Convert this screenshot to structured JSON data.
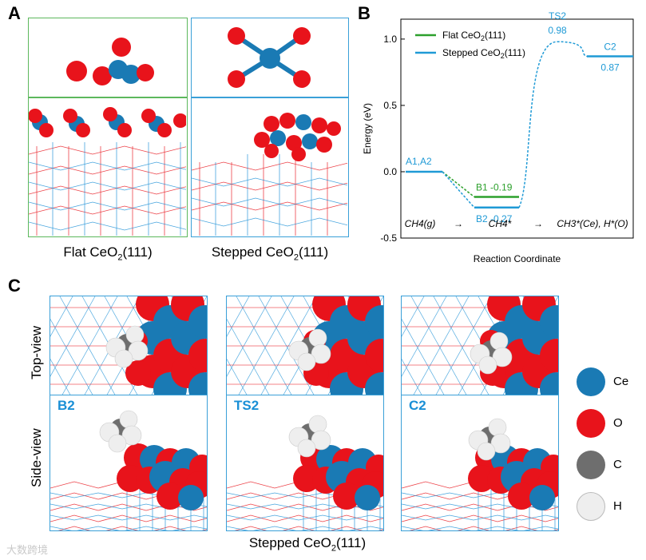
{
  "panels": {
    "a": "A",
    "b": "B",
    "c": "C"
  },
  "panel_a": {
    "flat_caption_main": "Flat CeO",
    "flat_caption_sub": "2",
    "flat_caption_tail": "(111)",
    "stepped_caption_main": "Stepped CeO",
    "stepped_caption_sub": "2",
    "stepped_caption_tail": "(111)",
    "flat_color": "#5cb85c",
    "stepped_color": "#3aa0d8"
  },
  "panel_c": {
    "top_view_label": "Top-view",
    "side_view_label": "Side-view",
    "states": [
      "B2",
      "TS2",
      "C2"
    ],
    "caption_main": "Stepped CeO",
    "caption_sub": "2",
    "caption_tail": "(111)",
    "legend": [
      {
        "label": "Ce",
        "color": "#1a7ab4"
      },
      {
        "label": "O",
        "color": "#e8131b"
      },
      {
        "label": "C",
        "color": "#6e6e6e"
      },
      {
        "label": "H",
        "color": "#eeeeee"
      }
    ],
    "watermark": "大数跨境"
  },
  "chart_data": {
    "type": "line",
    "ylabel": "Energy (eV)",
    "xlabel": "Reaction Coordinate",
    "ylim": [
      -0.5,
      1.15
    ],
    "yticks": [
      -0.5,
      0.0,
      0.5,
      1.0
    ],
    "ytick_labels": [
      "-0.5",
      "0.0",
      "0.5",
      "1.0"
    ],
    "stage_labels": [
      "CH4(g)",
      "→",
      "CH4*",
      "→",
      "CH3*(Ce), H*(O)"
    ],
    "series": [
      {
        "name": "Flat CeO2(111)",
        "color": "#2ca02c",
        "points": [
          {
            "state": "A1,A2",
            "energy": 0.0
          },
          {
            "state": "B1",
            "energy": -0.19
          }
        ]
      },
      {
        "name": "Stepped CeO2(111)",
        "color": "#1f9ad6",
        "points": [
          {
            "state": "A1,A2",
            "energy": 0.0
          },
          {
            "state": "B2",
            "energy": -0.27
          },
          {
            "state": "TS2",
            "energy": 0.98
          },
          {
            "state": "C2",
            "energy": 0.87
          }
        ]
      }
    ],
    "annotations": [
      {
        "text": "A1,A2",
        "color": "#1f9ad6"
      },
      {
        "text": "B1 -0.19",
        "color": "#2ca02c"
      },
      {
        "text": "B2 -0.27",
        "color": "#1f9ad6"
      },
      {
        "text": "TS2",
        "color": "#1f9ad6"
      },
      {
        "text": "0.98",
        "color": "#1f9ad6"
      },
      {
        "text": "C2",
        "color": "#1f9ad6"
      },
      {
        "text": "0.87",
        "color": "#1f9ad6"
      }
    ],
    "legend_labels": {
      "flat_main": "Flat CeO",
      "flat_sub": "2",
      "flat_tail": "(111)",
      "stepped_main": "Stepped CeO",
      "stepped_sub": "2",
      "stepped_tail": "(111)"
    }
  }
}
